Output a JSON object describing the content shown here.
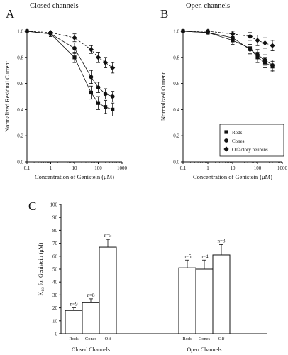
{
  "figure_panels": {
    "a": {
      "letter": "A",
      "title": "Closed channels"
    },
    "b": {
      "letter": "B",
      "title": "Open channels"
    },
    "c": {
      "letter": "C"
    }
  },
  "chart_data": [
    {
      "panel": "A",
      "type": "line",
      "title": "Closed channels",
      "xlabel": "Concentration of Genistein (μM)",
      "ylabel": "Normalized Residual Current",
      "xscale": "log",
      "xlim": [
        0.1,
        1000
      ],
      "ylim": [
        0,
        1.0
      ],
      "x_ticks": [
        "0.1",
        "1",
        "10",
        "100",
        "1000"
      ],
      "y_ticks": [
        "0.0",
        "0.2",
        "0.4",
        "0.6",
        "0.8",
        "1.0"
      ],
      "series": [
        {
          "name": "Rods",
          "marker": "square",
          "x": [
            0.1,
            1,
            10,
            50,
            100,
            200,
            400
          ],
          "y": [
            1.0,
            0.98,
            0.8,
            0.53,
            0.45,
            0.42,
            0.4
          ],
          "err": [
            0,
            0.02,
            0.04,
            0.05,
            0.05,
            0.05,
            0.05
          ]
        },
        {
          "name": "Cones",
          "marker": "circle",
          "x": [
            0.1,
            1,
            10,
            50,
            100,
            200,
            400
          ],
          "y": [
            1.0,
            0.98,
            0.87,
            0.65,
            0.57,
            0.52,
            0.5
          ],
          "err": [
            0,
            0.02,
            0.04,
            0.05,
            0.04,
            0.04,
            0.04
          ]
        },
        {
          "name": "Olfactory neurons",
          "marker": "diamond",
          "x": [
            0.1,
            1,
            10,
            50,
            100,
            200,
            400
          ],
          "y": [
            1.0,
            0.99,
            0.95,
            0.86,
            0.8,
            0.76,
            0.72
          ],
          "err": [
            0,
            0.01,
            0.03,
            0.03,
            0.04,
            0.04,
            0.04
          ]
        }
      ]
    },
    {
      "panel": "B",
      "type": "line",
      "title": "Open channels",
      "xlabel": "Concentration of Genistein (μM)",
      "ylabel": "Normalized Current",
      "xscale": "log",
      "xlim": [
        0.1,
        1000
      ],
      "ylim": [
        0,
        1.0
      ],
      "x_ticks": [
        "0.1",
        "1",
        "10",
        "100",
        "1000"
      ],
      "y_ticks": [
        "0.0",
        "0.2",
        "0.4",
        "0.6",
        "0.8",
        "1.0"
      ],
      "legend_position": "bottom-right",
      "series": [
        {
          "name": "Rods",
          "marker": "square",
          "x": [
            0.1,
            1,
            10,
            50,
            100,
            200,
            400
          ],
          "y": [
            1.0,
            0.99,
            0.93,
            0.87,
            0.8,
            0.76,
            0.73
          ],
          "err": [
            0,
            0.01,
            0.03,
            0.04,
            0.04,
            0.04,
            0.04
          ]
        },
        {
          "name": "Cones",
          "marker": "circle",
          "x": [
            0.1,
            1,
            10,
            50,
            100,
            200,
            400
          ],
          "y": [
            1.0,
            0.99,
            0.95,
            0.86,
            0.82,
            0.78,
            0.74
          ],
          "err": [
            0,
            0.01,
            0.03,
            0.04,
            0.04,
            0.04,
            0.04
          ]
        },
        {
          "name": "Olfactory neurons",
          "marker": "diamond",
          "x": [
            0.1,
            1,
            10,
            50,
            100,
            200,
            400
          ],
          "y": [
            1.0,
            1.0,
            0.98,
            0.96,
            0.93,
            0.91,
            0.89
          ],
          "err": [
            0,
            0.01,
            0.02,
            0.03,
            0.04,
            0.04,
            0.04
          ]
        }
      ]
    },
    {
      "panel": "C",
      "type": "bar",
      "ylabel": "K for Genistein (μM)",
      "ylabel_subscript": "1/2",
      "ylim": [
        0,
        100
      ],
      "y_ticks": [
        "0",
        "10",
        "20",
        "30",
        "40",
        "50",
        "60",
        "70",
        "80",
        "90",
        "100"
      ],
      "groups": [
        {
          "name": "Closed Channels",
          "bars": [
            {
              "category": "Rods",
              "value": 18,
              "err": 2,
              "n_label": "n=9"
            },
            {
              "category": "Cones",
              "value": 24,
              "err": 3,
              "n_label": "n=8"
            },
            {
              "category": "Olf",
              "value": 67,
              "err": 6,
              "n_label": "n=5"
            }
          ]
        },
        {
          "name": "Open Channels",
          "bars": [
            {
              "category": "Rods",
              "value": 51,
              "err": 6,
              "n_label": "n=5"
            },
            {
              "category": "Cones",
              "value": 50,
              "err": 7,
              "n_label": "n=4"
            },
            {
              "category": "Olf",
              "value": 61,
              "err": 8,
              "n_label": "n=3"
            }
          ]
        }
      ]
    }
  ]
}
